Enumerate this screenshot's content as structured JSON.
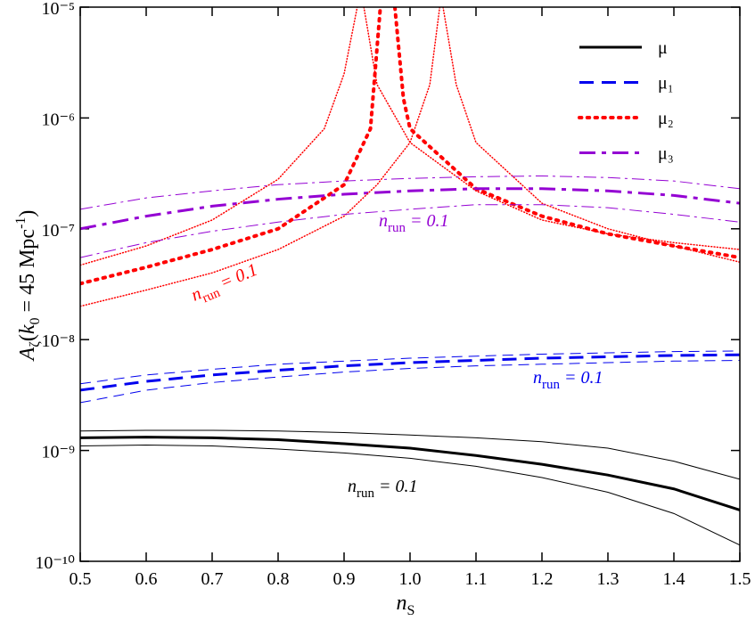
{
  "chart_data": {
    "type": "line",
    "xlabel": [
      "n",
      "S"
    ],
    "ylabel": [
      "A",
      "ζ",
      "(",
      "k",
      "0",
      " = 45 Mpc",
      "-1",
      ")"
    ],
    "xlim": [
      0.5,
      1.5
    ],
    "xticks": [
      0.5,
      0.6,
      0.7,
      0.8,
      0.9,
      {
        "value": 1,
        "label": "1.0"
      },
      1.1,
      1.2,
      1.3,
      1.4,
      1.5
    ],
    "ylim": [
      1e-10,
      1e-05
    ],
    "yscale": "log",
    "yticks": [
      {
        "value": 1e-10,
        "label": "10⁻¹⁰"
      },
      {
        "value": 1e-09,
        "label": "10⁻⁹"
      },
      {
        "value": 1e-08,
        "label": "10⁻⁸"
      },
      {
        "value": 1e-07,
        "label": "10⁻⁷"
      },
      {
        "value": 1e-06,
        "label": "10⁻⁶"
      },
      {
        "value": 1e-05,
        "label": "10⁻⁵"
      }
    ],
    "legend": "upper right",
    "series": [
      {
        "name": "μ",
        "color": "#000000",
        "dash": "solid",
        "width": 3,
        "x": [
          0.5,
          0.6,
          0.7,
          0.8,
          0.9,
          1.0,
          1.1,
          1.2,
          1.3,
          1.4,
          1.5
        ],
        "values": [
          1.3e-09,
          1.32e-09,
          1.3e-09,
          1.25e-09,
          1.15e-09,
          1.05e-09,
          9e-10,
          7.5e-10,
          6e-10,
          4.5e-10,
          2.9e-10
        ]
      },
      {
        "name": "μ₁",
        "color": "#0000ee",
        "dash": "dashed",
        "width": 3,
        "x": [
          0.5,
          0.6,
          0.7,
          0.8,
          0.9,
          1.0,
          1.1,
          1.2,
          1.3,
          1.4,
          1.5
        ],
        "values": [
          3.5e-09,
          4.2e-09,
          4.8e-09,
          5.3e-09,
          5.8e-09,
          6.2e-09,
          6.5e-09,
          6.8e-09,
          7e-09,
          7.2e-09,
          7.3e-09
        ]
      },
      {
        "name": "μ₂",
        "color": "#ff0000",
        "dash": "dotted",
        "width": 4,
        "x": [
          0.5,
          0.6,
          0.7,
          0.8,
          0.9,
          0.94,
          0.955,
          0.966,
          0.977,
          0.99,
          1.0,
          1.1,
          1.2,
          1.3,
          1.4,
          1.5
        ],
        "values": [
          3.2e-08,
          4.5e-08,
          6.5e-08,
          1e-07,
          2.5e-07,
          8e-07,
          1e-05,
          null,
          1e-05,
          1.5e-06,
          8e-07,
          2.3e-07,
          1.3e-07,
          9e-08,
          7e-08,
          5.5e-08
        ]
      },
      {
        "name": "μ₃",
        "color": "#9400d3",
        "dash": "dashdot",
        "width": 3,
        "x": [
          0.5,
          0.6,
          0.7,
          0.8,
          0.9,
          1.0,
          1.1,
          1.2,
          1.3,
          1.4,
          1.5
        ],
        "values": [
          1e-07,
          1.3e-07,
          1.6e-07,
          1.85e-07,
          2.05e-07,
          2.2e-07,
          2.3e-07,
          2.3e-07,
          2.2e-07,
          2e-07,
          1.7e-07
        ]
      },
      {
        "color": "#000000",
        "dash": "solid",
        "width": 1,
        "x": [
          0.5,
          0.6,
          0.7,
          0.8,
          0.9,
          1.0,
          1.1,
          1.2,
          1.3,
          1.4,
          1.5
        ],
        "values": [
          1.5e-09,
          1.52e-09,
          1.52e-09,
          1.5e-09,
          1.45e-09,
          1.38e-09,
          1.3e-09,
          1.2e-09,
          1.05e-09,
          8e-10,
          5.5e-10
        ]
      },
      {
        "color": "#000000",
        "dash": "solid",
        "width": 1,
        "x": [
          0.5,
          0.6,
          0.7,
          0.8,
          0.9,
          1.0,
          1.1,
          1.2,
          1.3,
          1.4,
          1.5
        ],
        "values": [
          1.1e-09,
          1.12e-09,
          1.1e-09,
          1.03e-09,
          9.5e-10,
          8.5e-10,
          7.2e-10,
          5.7e-10,
          4.2e-10,
          2.7e-10,
          1.4e-10
        ]
      },
      {
        "color": "#0000ee",
        "dash": "dashed",
        "width": 1,
        "x": [
          0.5,
          0.6,
          0.7,
          0.8,
          0.9,
          1.0,
          1.1,
          1.2,
          1.3,
          1.4,
          1.5
        ],
        "values": [
          4e-09,
          4.8e-09,
          5.4e-09,
          6e-09,
          6.4e-09,
          6.8e-09,
          7.1e-09,
          7.4e-09,
          7.6e-09,
          7.8e-09,
          7.9e-09
        ]
      },
      {
        "color": "#0000ee",
        "dash": "dashed",
        "width": 1,
        "x": [
          0.5,
          0.6,
          0.7,
          0.8,
          0.9,
          1.0,
          1.1,
          1.2,
          1.3,
          1.4,
          1.5
        ],
        "values": [
          2.7e-09,
          3.5e-09,
          4.1e-09,
          4.6e-09,
          5.1e-09,
          5.5e-09,
          5.8e-09,
          6e-09,
          6.2e-09,
          6.4e-09,
          6.5e-09
        ]
      },
      {
        "color": "#ff0000",
        "dash": "dotted",
        "width": 1.5,
        "x": [
          0.5,
          0.6,
          0.7,
          0.8,
          0.87,
          0.9,
          0.92,
          0.925,
          0.93,
          0.95,
          1.0,
          1.1,
          1.2,
          1.3,
          1.4,
          1.5
        ],
        "values": [
          4.7e-08,
          7e-08,
          1.2e-07,
          2.8e-07,
          8e-07,
          2.5e-06,
          1e-05,
          null,
          1e-05,
          2e-06,
          6e-07,
          2.2e-07,
          1.2e-07,
          9e-08,
          7.5e-08,
          6.5e-08
        ]
      },
      {
        "color": "#ff0000",
        "dash": "dotted",
        "width": 1.5,
        "x": [
          0.5,
          0.6,
          0.7,
          0.8,
          0.9,
          0.95,
          1.0,
          1.03,
          1.045,
          1.048,
          1.05,
          1.07,
          1.1,
          1.2,
          1.3,
          1.4,
          1.5
        ],
        "values": [
          2e-08,
          2.8e-08,
          4e-08,
          6.5e-08,
          1.3e-07,
          2.5e-07,
          6e-07,
          2e-06,
          1e-05,
          null,
          1e-05,
          2e-06,
          6e-07,
          1.7e-07,
          1e-07,
          7e-08,
          5e-08
        ]
      },
      {
        "color": "#9400d3",
        "dash": "dashdot",
        "width": 1,
        "x": [
          0.5,
          0.6,
          0.7,
          0.8,
          0.9,
          1.0,
          1.1,
          1.2,
          1.3,
          1.4,
          1.5
        ],
        "values": [
          1.5e-07,
          1.9e-07,
          2.2e-07,
          2.5e-07,
          2.7e-07,
          2.85e-07,
          2.95e-07,
          3e-07,
          2.9e-07,
          2.7e-07,
          2.3e-07
        ]
      },
      {
        "color": "#9400d3",
        "dash": "dashdot",
        "width": 1,
        "x": [
          0.5,
          0.6,
          0.7,
          0.8,
          0.9,
          1.0,
          1.1,
          1.2,
          1.3,
          1.4,
          1.5
        ],
        "values": [
          5.5e-08,
          7.5e-08,
          9.5e-08,
          1.15e-07,
          1.35e-07,
          1.5e-07,
          1.65e-07,
          1.65e-07,
          1.55e-07,
          1.35e-07,
          1.15e-07
        ]
      }
    ],
    "annotations": [
      {
        "text": [
          "n",
          "run",
          " = 0.1"
        ],
        "color": "#000000"
      },
      {
        "text": [
          "n",
          "run",
          " = 0.1"
        ],
        "color": "#0000ee"
      },
      {
        "text": [
          "n",
          "run",
          " = 0.1"
        ],
        "color": "#ff0000"
      },
      {
        "text": [
          "n",
          "run",
          " = 0.1"
        ],
        "color": "#9400d3"
      }
    ]
  }
}
